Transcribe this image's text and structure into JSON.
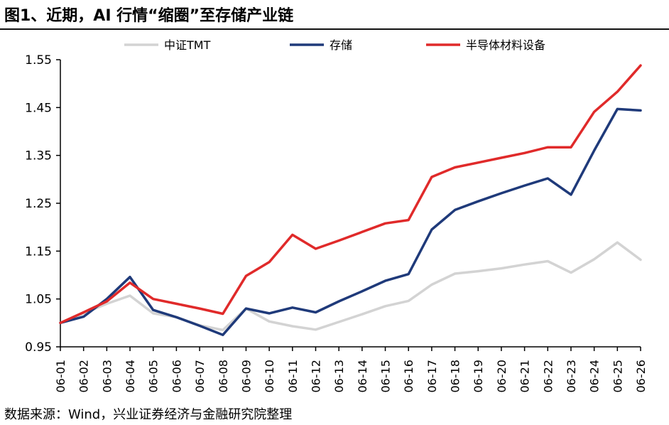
{
  "header": {
    "title": "图1、近期，AI 行情“缩圈”至存储产业链"
  },
  "footer": {
    "source": "数据来源：Wind，兴业证券经济与金融研究院整理"
  },
  "chart_data": {
    "type": "line",
    "title": "",
    "xlabel": "",
    "ylabel": "",
    "categories": [
      "06-01",
      "06-02",
      "06-03",
      "06-04",
      "06-05",
      "06-06",
      "06-07",
      "06-08",
      "06-09",
      "06-10",
      "06-11",
      "06-12",
      "06-13",
      "06-14",
      "06-15",
      "06-16",
      "06-17",
      "06-18",
      "06-19",
      "06-20",
      "06-21",
      "06-22",
      "06-23",
      "06-24",
      "06-25",
      "06-26"
    ],
    "yticks": [
      "0.95",
      "1.05",
      "1.15",
      "1.25",
      "1.35",
      "1.45",
      "1.55"
    ],
    "ylim": [
      0.95,
      1.55
    ],
    "grid": false,
    "legend_position": "top",
    "series": [
      {
        "name": "中证TMT",
        "color": "#d3d3d3",
        "values": [
          1.0,
          1.02,
          1.04,
          1.057,
          1.02,
          1.012,
          0.995,
          0.985,
          1.03,
          1.003,
          0.993,
          0.986,
          1.002,
          1.018,
          1.035,
          1.046,
          1.08,
          1.103,
          1.108,
          1.114,
          1.122,
          1.129,
          1.105,
          1.133,
          1.168,
          1.132
        ]
      },
      {
        "name": "存储",
        "color": "#1f3a7a",
        "values": [
          1.0,
          1.013,
          1.05,
          1.096,
          1.027,
          1.012,
          0.994,
          0.975,
          1.03,
          1.02,
          1.032,
          1.022,
          1.045,
          1.066,
          1.088,
          1.102,
          1.195,
          1.236,
          1.254,
          1.271,
          1.287,
          1.302,
          1.268,
          1.36,
          1.447,
          1.444
        ]
      },
      {
        "name": "半导体材料设备",
        "color": "#e02a2a",
        "values": [
          1.0,
          1.022,
          1.045,
          1.084,
          1.05,
          1.04,
          1.03,
          1.019,
          1.098,
          1.127,
          1.184,
          1.155,
          1.172,
          1.19,
          1.208,
          1.215,
          1.305,
          1.325,
          1.335,
          1.345,
          1.355,
          1.367,
          1.367,
          1.441,
          1.483,
          1.538
        ]
      }
    ]
  }
}
